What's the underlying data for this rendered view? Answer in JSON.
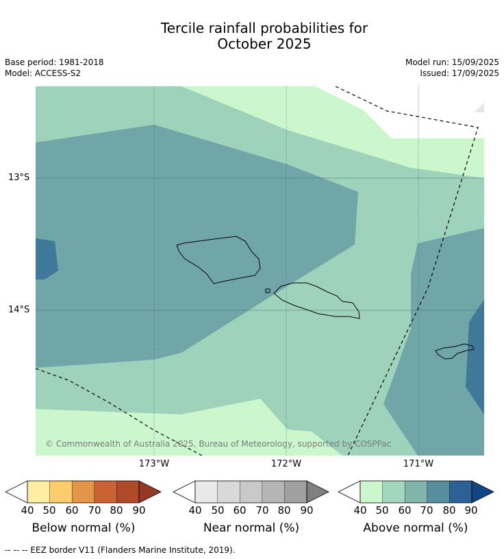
{
  "title": {
    "line1": "Tercile rainfall probabilities for",
    "line2": "October 2025"
  },
  "meta": {
    "base_period": "Base period: 1981-2018",
    "model": "Model: ACCESS-S2",
    "model_run": "Model run: 15/09/2025",
    "issued": "Issued: 17/09/2025"
  },
  "map": {
    "lat_ticks": [
      "13°S",
      "14°S"
    ],
    "lon_ticks": [
      "173°W",
      "172°W",
      "171°W"
    ],
    "copyright": "© Commonwealth of Australia 2025, Bureau of Meteorology, supported by COSPPac",
    "colors": {
      "above_40_50": "#ccf7cc",
      "above_50_60": "#9fd2bb",
      "above_60_70": "#70a6a8",
      "above_70_80": "#3f7898",
      "land_outline": "#000000",
      "eez_line": "#000000"
    }
  },
  "legend": {
    "tick_labels": [
      "40",
      "50",
      "60",
      "70",
      "80",
      "90"
    ],
    "below": {
      "title": "Below normal (%)",
      "colors": [
        "#fdeea1",
        "#fdcd6b",
        "#e29646",
        "#cb6234",
        "#b14a2a",
        "#953826"
      ]
    },
    "near": {
      "title": "Near normal (%)",
      "colors": [
        "#e9e9e9",
        "#d9d9d9",
        "#c9c9c9",
        "#b5b5b5",
        "#a0a0a0",
        "#808080"
      ]
    },
    "above": {
      "title": "Above normal (%)",
      "colors": [
        "#ccf7cc",
        "#a2d6bd",
        "#81b5ac",
        "#578d9c",
        "#2d6195",
        "#0f4785"
      ]
    }
  },
  "footnote": "--  --  -- EEZ border V11 (Flanders Marine Institute, 2019)."
}
